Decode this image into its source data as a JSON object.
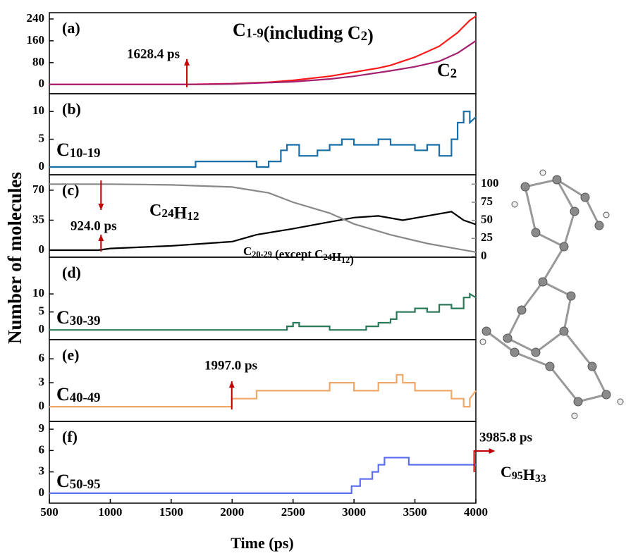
{
  "figure": {
    "ylabel": "Number of molecules",
    "xlabel": "Time (ps)"
  },
  "chart_data": [
    {
      "type": "line",
      "panel_label": "(a)",
      "xlim": [
        500,
        4000
      ],
      "ylim": [
        -34,
        263
      ],
      "yticks": [
        0,
        80,
        160,
        240
      ],
      "series": [
        {
          "name": "C1-9(including C2)",
          "color": "#ff1a1a",
          "x": [
            500,
            1600,
            2000,
            2300,
            2500,
            2800,
            3000,
            3200,
            3300,
            3500,
            3700,
            3850,
            3950,
            4000
          ],
          "values": [
            0,
            0,
            3,
            8,
            15,
            30,
            45,
            60,
            70,
            100,
            140,
            190,
            235,
            250
          ]
        },
        {
          "name": "C2",
          "color": "#a3206f",
          "x": [
            500,
            1700,
            2000,
            2500,
            2800,
            3000,
            3300,
            3500,
            3700,
            3850,
            4000
          ],
          "values": [
            0,
            0,
            2,
            10,
            20,
            30,
            50,
            65,
            85,
            115,
            160
          ]
        }
      ],
      "events": [
        {
          "label": "1628.4 ps",
          "value": 1628.4
        }
      ]
    },
    {
      "type": "line",
      "panel_label": "(b)",
      "xlim": [
        500,
        4000
      ],
      "ylim": [
        -1.4,
        13.2
      ],
      "yticks": [
        0,
        5,
        10
      ],
      "series": [
        {
          "name": "C10-19",
          "color": "#1a6fa8",
          "x": [
            500,
            1700,
            1700,
            2200,
            2200,
            2300,
            2300,
            2400,
            2400,
            2450,
            2450,
            2550,
            2550,
            2700,
            2700,
            2800,
            2800,
            2900,
            2900,
            3000,
            3000,
            3200,
            3200,
            3300,
            3300,
            3500,
            3500,
            3600,
            3600,
            3700,
            3700,
            3800,
            3800,
            3850,
            3850,
            3900,
            3900,
            3950,
            3950,
            4000
          ],
          "values": [
            0,
            0,
            1,
            1,
            0,
            0,
            1,
            1,
            3,
            3,
            4,
            4,
            2,
            2,
            3,
            3,
            4,
            4,
            5,
            5,
            4,
            4,
            5,
            5,
            4,
            4,
            3,
            3,
            4,
            4,
            2,
            2,
            5,
            5,
            8,
            8,
            10,
            10,
            8,
            9
          ]
        }
      ]
    },
    {
      "type": "line",
      "panel_label": "(c)",
      "xlim": [
        500,
        4000
      ],
      "ylim": [
        -8.2,
        88
      ],
      "yticks": [
        0,
        35,
        70
      ],
      "y2lim": [
        -1,
        113
      ],
      "y2ticks": [
        0,
        25,
        50,
        75,
        100
      ],
      "series": [
        {
          "name": "C20-29 (except C24H12)",
          "color": "#000000",
          "x": [
            500,
            900,
            1000,
            1500,
            2000,
            2200,
            2500,
            2800,
            3000,
            3200,
            3400,
            3600,
            3800,
            3900,
            4000
          ],
          "values": [
            0,
            0,
            2,
            5,
            10,
            18,
            25,
            33,
            38,
            40,
            35,
            40,
            45,
            35,
            30
          ]
        },
        {
          "name": "C24H12",
          "axis": "y2",
          "color": "#888888",
          "x": [
            500,
            1000,
            1500,
            2000,
            2300,
            2500,
            2800,
            3000,
            3300,
            3600,
            3800,
            4000
          ],
          "values": [
            100,
            100,
            99,
            96,
            88,
            75,
            60,
            45,
            30,
            18,
            12,
            6
          ]
        }
      ],
      "events": [
        {
          "label": "924.0 ps",
          "value": 924.0
        }
      ]
    },
    {
      "type": "line",
      "panel_label": "(d)",
      "xlim": [
        500,
        4000
      ],
      "ylim": [
        -2.7,
        20.2
      ],
      "yticks": [
        0,
        5,
        10
      ],
      "series": [
        {
          "name": "C30-39",
          "color": "#2a7a5a",
          "x": [
            500,
            2450,
            2450,
            2500,
            2500,
            2550,
            2550,
            2800,
            2800,
            3100,
            3100,
            3200,
            3200,
            3300,
            3300,
            3350,
            3350,
            3500,
            3500,
            3600,
            3600,
            3700,
            3700,
            3800,
            3800,
            3900,
            3900,
            3950,
            3950,
            4000
          ],
          "values": [
            0,
            0,
            1,
            1,
            2,
            2,
            1,
            1,
            0,
            0,
            1,
            1,
            2,
            2,
            3,
            3,
            5,
            5,
            6,
            6,
            5,
            5,
            7,
            7,
            6,
            6,
            9,
            9,
            10,
            9
          ]
        }
      ]
    },
    {
      "type": "line",
      "panel_label": "(e)",
      "xlim": [
        500,
        4000
      ],
      "ylim": [
        -1.85,
        8.4
      ],
      "yticks": [
        0,
        3,
        6
      ],
      "series": [
        {
          "name": "C40-49",
          "color": "#f0a868",
          "x": [
            500,
            1997,
            1997,
            2200,
            2200,
            2800,
            2800,
            3000,
            3000,
            3200,
            3200,
            3350,
            3350,
            3400,
            3400,
            3500,
            3500,
            3800,
            3800,
            3900,
            3900,
            3950,
            3950,
            4000
          ],
          "values": [
            0,
            0,
            1,
            1,
            2,
            2,
            3,
            3,
            2,
            2,
            3,
            3,
            4,
            4,
            3,
            3,
            2,
            2,
            1,
            1,
            0,
            0,
            1,
            2
          ]
        }
      ],
      "events": [
        {
          "label": "1997.0 ps",
          "value": 1997.0
        }
      ]
    },
    {
      "type": "line",
      "panel_label": "(f)",
      "xlim": [
        500,
        4000
      ],
      "ylim": [
        -1.4,
        10.1
      ],
      "yticks": [
        0,
        3,
        6,
        9
      ],
      "xticks": [
        500,
        1000,
        1500,
        2000,
        2500,
        3000,
        3500,
        4000
      ],
      "series": [
        {
          "name": "C50-95",
          "color": "#5b6ff0",
          "x": [
            500,
            2980,
            2980,
            3050,
            3050,
            3150,
            3150,
            3200,
            3200,
            3250,
            3250,
            3450,
            3450,
            3500,
            3500,
            4000
          ],
          "values": [
            0,
            0,
            1,
            1,
            2,
            2,
            3,
            3,
            4,
            4,
            5,
            5,
            4,
            4,
            4,
            4
          ]
        }
      ],
      "events": [
        {
          "label": "3985.8 ps",
          "value": 3985.8
        }
      ],
      "annotation": "C95H33"
    }
  ]
}
